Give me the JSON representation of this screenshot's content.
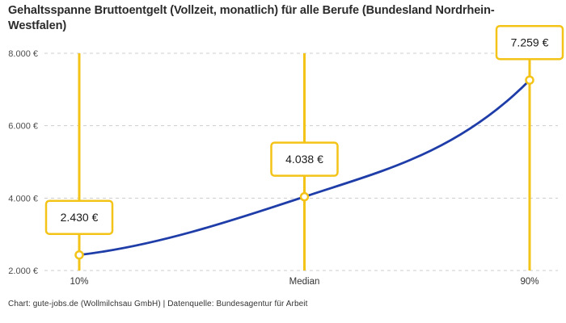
{
  "header": {
    "title": "Gehaltsspanne Bruttoentgelt (Vollzeit, monatlich) für alle Berufe (Bundesland Nordrhein-Westfalen)"
  },
  "footer": {
    "credit": "Chart: gute-jobs.de (Wollmilchsau GmbH) | Datenquelle: Bundesagentur für Arbeit"
  },
  "chart_data": {
    "type": "line",
    "title": "Gehaltsspanne Bruttoentgelt (Vollzeit, monatlich) für alle Berufe (Bundesland Nordrhein-Westfalen)",
    "categories": [
      "10%",
      "Median",
      "90%"
    ],
    "values": [
      2430,
      4038,
      7259
    ],
    "point_labels": [
      "2.430 €",
      "4.038 €",
      "7.259 €"
    ],
    "ylim": [
      2000,
      8000
    ],
    "y_ticks": [
      {
        "value": 2000,
        "label": "2.000 €"
      },
      {
        "value": 4000,
        "label": "4.000 €"
      },
      {
        "value": 6000,
        "label": "6.000 €"
      },
      {
        "value": 8000,
        "label": "8.000 €"
      }
    ],
    "xlabel": "",
    "ylabel": "",
    "grid": "horizontal-dashed",
    "legend": "none",
    "colors": {
      "line": "#1f3da8",
      "highlight": "#f3c317",
      "grid": "#cccccc",
      "axis_text": "#4d4d4d",
      "category_text": "#333333",
      "value_text": "#1a1a1a",
      "marker_fill": "#ffffff"
    }
  }
}
